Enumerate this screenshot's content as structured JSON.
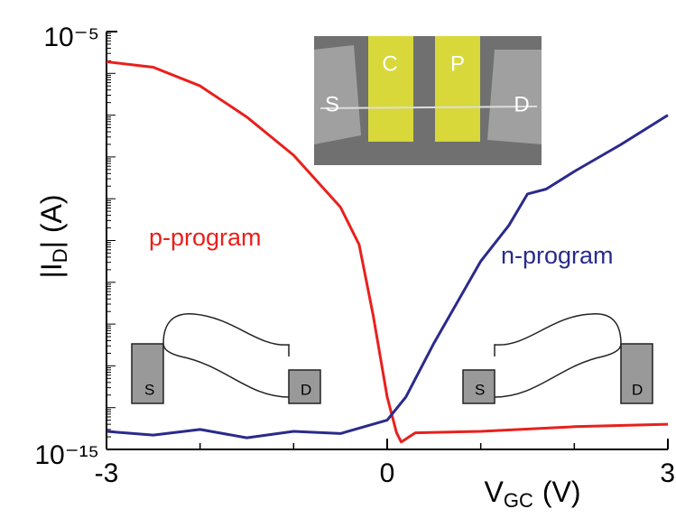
{
  "chart_data": {
    "type": "line",
    "log_y": true,
    "ylabel": {
      "symbol": "|I",
      "subscript": "D",
      "rest": "| (A)"
    },
    "xlabel": {
      "symbol": "V",
      "subscript": "GC",
      "unit": "(V)"
    },
    "xlim": [
      -3,
      3
    ],
    "xticks": [
      -3,
      0,
      3
    ],
    "ylim": [
      1e-15,
      1e-05
    ],
    "yticks": [
      {
        "value": 1e-15,
        "label": "10⁻¹⁵"
      },
      {
        "value": 1e-05,
        "label": "10⁻⁵"
      }
    ],
    "series": [
      {
        "name": "p-program",
        "color": "#e8201c",
        "x": [
          -3,
          -2.5,
          -2,
          -1.5,
          -1,
          -0.5,
          -0.3,
          -0.15,
          0,
          0.1,
          0.15,
          0.3,
          1,
          2,
          3
        ],
        "values": [
          1.9e-06,
          1.4e-06,
          5e-07,
          9e-08,
          1.1e-08,
          6.3e-10,
          8e-11,
          1.6e-12,
          1.8e-14,
          2.5e-15,
          1.5e-15,
          2.5e-15,
          2.7e-15,
          3.5e-15,
          4e-15
        ]
      },
      {
        "name": "n-program",
        "color": "#2a2a8c",
        "x": [
          -3,
          -2.5,
          -2,
          -1.5,
          -1,
          -0.5,
          0,
          0.2,
          0.5,
          1,
          1.3,
          1.5,
          1.7,
          2,
          2.5,
          3
        ],
        "values": [
          2.7e-15,
          2.2e-15,
          3e-15,
          1.9e-15,
          2.7e-15,
          2.4e-15,
          5e-15,
          1.8e-14,
          3.5e-13,
          3.2e-11,
          2.3e-10,
          1.3e-09,
          1.7e-09,
          4.5e-09,
          2e-08,
          1e-07
        ]
      }
    ],
    "inset_labels": [
      "S",
      "C",
      "P",
      "D"
    ],
    "band_labels": {
      "left": [
        "S",
        "D"
      ],
      "right": [
        "S",
        "D"
      ]
    }
  }
}
